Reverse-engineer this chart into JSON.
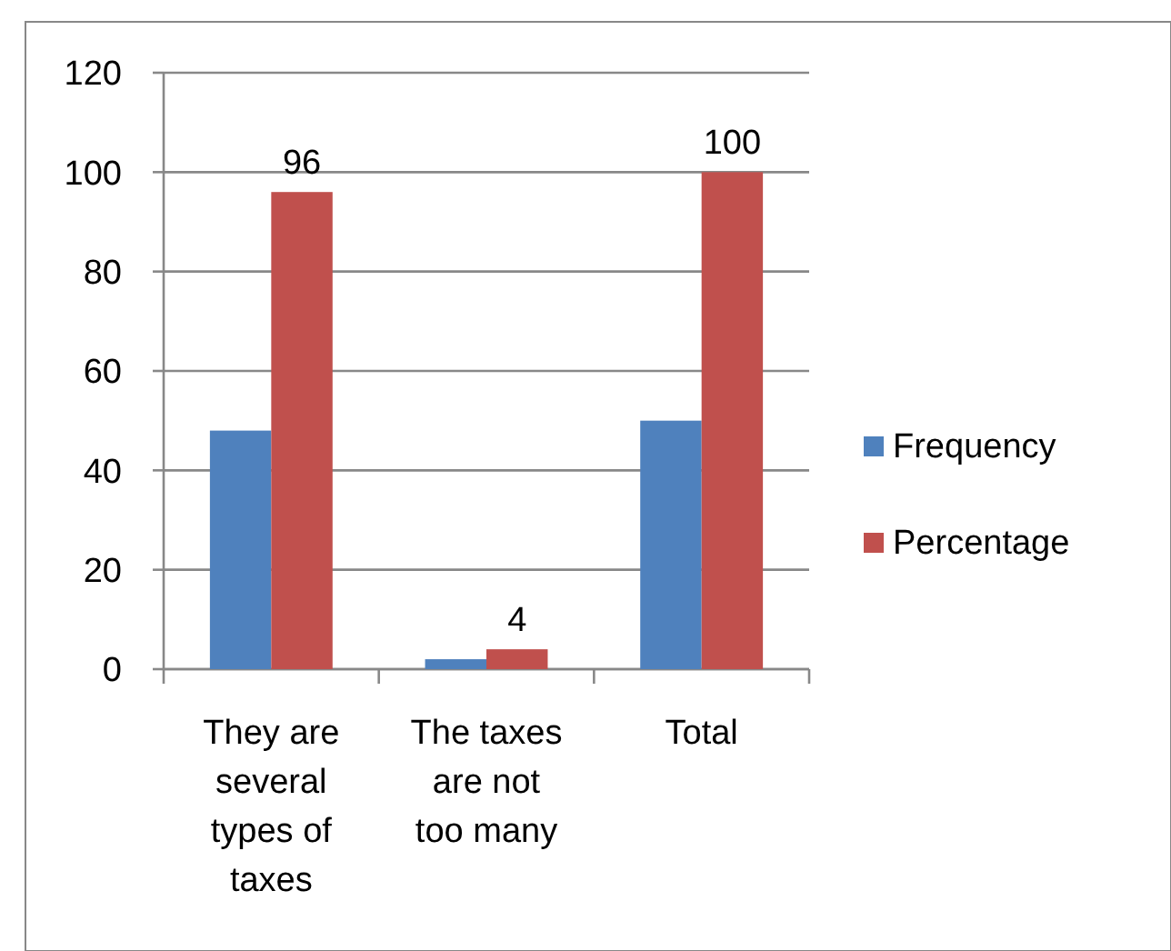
{
  "chart_data": {
    "type": "bar",
    "categories": [
      "They are several types of taxes",
      "The taxes are not too many",
      "Total"
    ],
    "series": [
      {
        "name": "Frequency",
        "color": "#4f81bd",
        "values": [
          48,
          2,
          50
        ]
      },
      {
        "name": "Percentage",
        "color": "#c0504d",
        "values": [
          96,
          4,
          100
        ],
        "value_labels": [
          "96",
          "4",
          "100"
        ]
      }
    ],
    "ylim": [
      0,
      120
    ],
    "yticks": [
      0,
      20,
      40,
      60,
      80,
      100,
      120
    ],
    "grid": "y",
    "legend": "right"
  }
}
